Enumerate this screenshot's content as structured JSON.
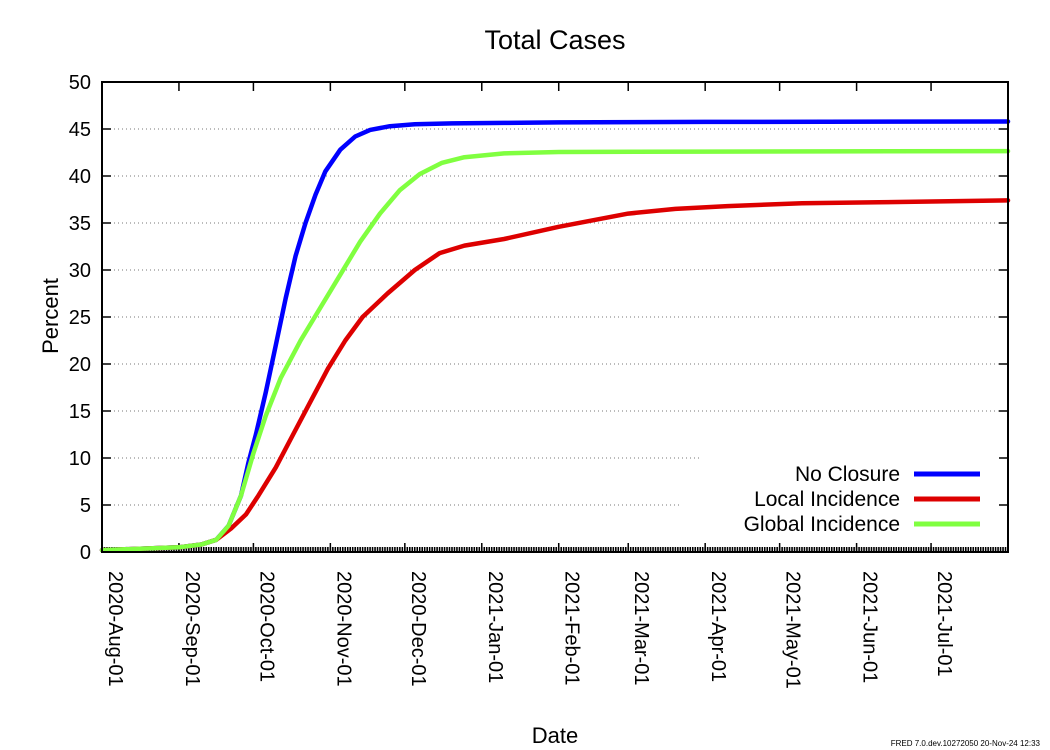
{
  "chart_data": {
    "type": "line",
    "title": "Total Cases",
    "xlabel": "Date",
    "ylabel": "Percent",
    "ylim": [
      0,
      50
    ],
    "yticks": [
      0,
      5,
      10,
      15,
      20,
      25,
      30,
      35,
      40,
      45,
      50
    ],
    "xlim": [
      "2020-08-01",
      "2021-08-01"
    ],
    "xticks": [
      "2020-Aug-01",
      "2020-Sep-01",
      "2020-Oct-01",
      "2020-Nov-01",
      "2020-Dec-01",
      "2021-Jan-01",
      "2021-Feb-01",
      "2021-Mar-01",
      "2021-Apr-01",
      "2021-May-01",
      "2021-Jun-01",
      "2021-Jul-01"
    ],
    "xtick_dates": [
      "2020-08-01",
      "2020-09-01",
      "2020-10-01",
      "2020-11-01",
      "2020-12-01",
      "2021-01-01",
      "2021-02-01",
      "2021-03-01",
      "2021-04-01",
      "2021-05-01",
      "2021-06-01",
      "2021-07-01"
    ],
    "grid": "horizontal-dotted",
    "legend_position": "bottom-right",
    "series": [
      {
        "name": "No Closure",
        "color": "#0000ff",
        "points": [
          [
            "2020-08-01",
            0.2
          ],
          [
            "2020-09-01",
            0.5
          ],
          [
            "2020-09-10",
            0.8
          ],
          [
            "2020-09-16",
            1.3
          ],
          [
            "2020-09-21",
            2.8
          ],
          [
            "2020-09-26",
            6
          ],
          [
            "2020-09-29",
            9.5
          ],
          [
            "2020-10-02",
            12.5
          ],
          [
            "2020-10-06",
            17
          ],
          [
            "2020-10-10",
            22
          ],
          [
            "2020-10-14",
            27
          ],
          [
            "2020-10-18",
            31.5
          ],
          [
            "2020-10-22",
            35
          ],
          [
            "2020-10-26",
            38
          ],
          [
            "2020-10-30",
            40.5
          ],
          [
            "2020-11-05",
            42.8
          ],
          [
            "2020-11-11",
            44.2
          ],
          [
            "2020-11-17",
            44.9
          ],
          [
            "2020-11-25",
            45.3
          ],
          [
            "2020-12-05",
            45.5
          ],
          [
            "2020-12-20",
            45.6
          ],
          [
            "2021-01-10",
            45.65
          ],
          [
            "2021-02-01",
            45.7
          ],
          [
            "2021-04-01",
            45.75
          ],
          [
            "2021-08-01",
            45.8
          ]
        ]
      },
      {
        "name": "Local Incidence",
        "color": "#dd0000",
        "points": [
          [
            "2020-08-01",
            0.2
          ],
          [
            "2020-09-01",
            0.5
          ],
          [
            "2020-09-10",
            0.8
          ],
          [
            "2020-09-16",
            1.3
          ],
          [
            "2020-09-22",
            2.5
          ],
          [
            "2020-09-28",
            4
          ],
          [
            "2020-10-03",
            6
          ],
          [
            "2020-10-10",
            9
          ],
          [
            "2020-10-17",
            12.5
          ],
          [
            "2020-10-24",
            16
          ],
          [
            "2020-10-31",
            19.5
          ],
          [
            "2020-11-07",
            22.5
          ],
          [
            "2020-11-14",
            25
          ],
          [
            "2020-11-24",
            27.5
          ],
          [
            "2020-12-05",
            30
          ],
          [
            "2020-12-15",
            31.8
          ],
          [
            "2020-12-25",
            32.6
          ],
          [
            "2021-01-10",
            33.3
          ],
          [
            "2021-02-01",
            34.6
          ],
          [
            "2021-03-01",
            36
          ],
          [
            "2021-03-20",
            36.5
          ],
          [
            "2021-04-10",
            36.8
          ],
          [
            "2021-05-10",
            37.1
          ],
          [
            "2021-06-10",
            37.2
          ],
          [
            "2021-08-01",
            37.4
          ]
        ]
      },
      {
        "name": "Global Incidence",
        "color": "#80ff40",
        "points": [
          [
            "2020-08-01",
            0.2
          ],
          [
            "2020-09-01",
            0.5
          ],
          [
            "2020-09-10",
            0.8
          ],
          [
            "2020-09-16",
            1.3
          ],
          [
            "2020-09-21",
            2.8
          ],
          [
            "2020-09-26",
            6
          ],
          [
            "2020-10-01",
            10.5
          ],
          [
            "2020-10-06",
            14.5
          ],
          [
            "2020-10-12",
            18.5
          ],
          [
            "2020-10-20",
            22.5
          ],
          [
            "2020-10-28",
            26
          ],
          [
            "2020-11-05",
            29.5
          ],
          [
            "2020-11-13",
            33
          ],
          [
            "2020-11-21",
            36
          ],
          [
            "2020-11-29",
            38.5
          ],
          [
            "2020-12-07",
            40.2
          ],
          [
            "2020-12-16",
            41.4
          ],
          [
            "2020-12-25",
            42
          ],
          [
            "2021-01-10",
            42.4
          ],
          [
            "2021-02-01",
            42.55
          ],
          [
            "2021-04-01",
            42.6
          ],
          [
            "2021-08-01",
            42.65
          ]
        ]
      }
    ],
    "footer": "FRED 7.0.dev.10272050 20-Nov-24 12:33"
  }
}
